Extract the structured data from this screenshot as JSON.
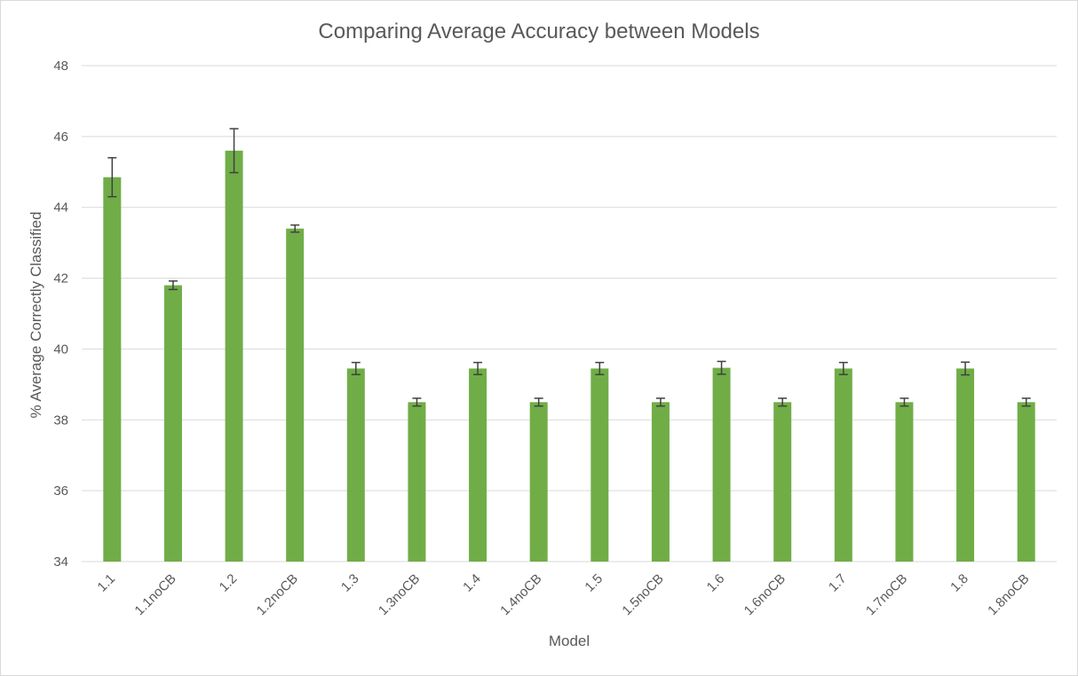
{
  "chart_data": {
    "type": "bar",
    "title": "Comparing Average Accuracy between Models",
    "xlabel": "Model",
    "ylabel": "% Average Correctly Classified",
    "ylim": [
      34,
      48
    ],
    "yticks": [
      34,
      36,
      38,
      40,
      42,
      44,
      46,
      48
    ],
    "grid": true,
    "legend": "none",
    "categories": [
      "1.1",
      "1.1noCB",
      "1.2",
      "1.2noCB",
      "1.3",
      "1.3noCB",
      "1.4",
      "1.4noCB",
      "1.5",
      "1.5noCB",
      "1.6",
      "1.6noCB",
      "1.7",
      "1.7noCB",
      "1.8",
      "1.8noCB"
    ],
    "series": [
      {
        "values": [
          44.85,
          41.8,
          45.6,
          43.4,
          39.45,
          38.5,
          39.45,
          38.5,
          39.45,
          38.5,
          39.47,
          38.5,
          39.45,
          38.5,
          39.45,
          38.5
        ],
        "error": [
          0.55,
          0.12,
          0.62,
          0.1,
          0.17,
          0.11,
          0.17,
          0.11,
          0.17,
          0.11,
          0.18,
          0.11,
          0.17,
          0.11,
          0.18,
          0.11
        ]
      }
    ],
    "colors": {
      "bar": "#70ad47",
      "error_bar": "#404040",
      "grid": "#d9d9d9",
      "text": "#595959"
    }
  }
}
